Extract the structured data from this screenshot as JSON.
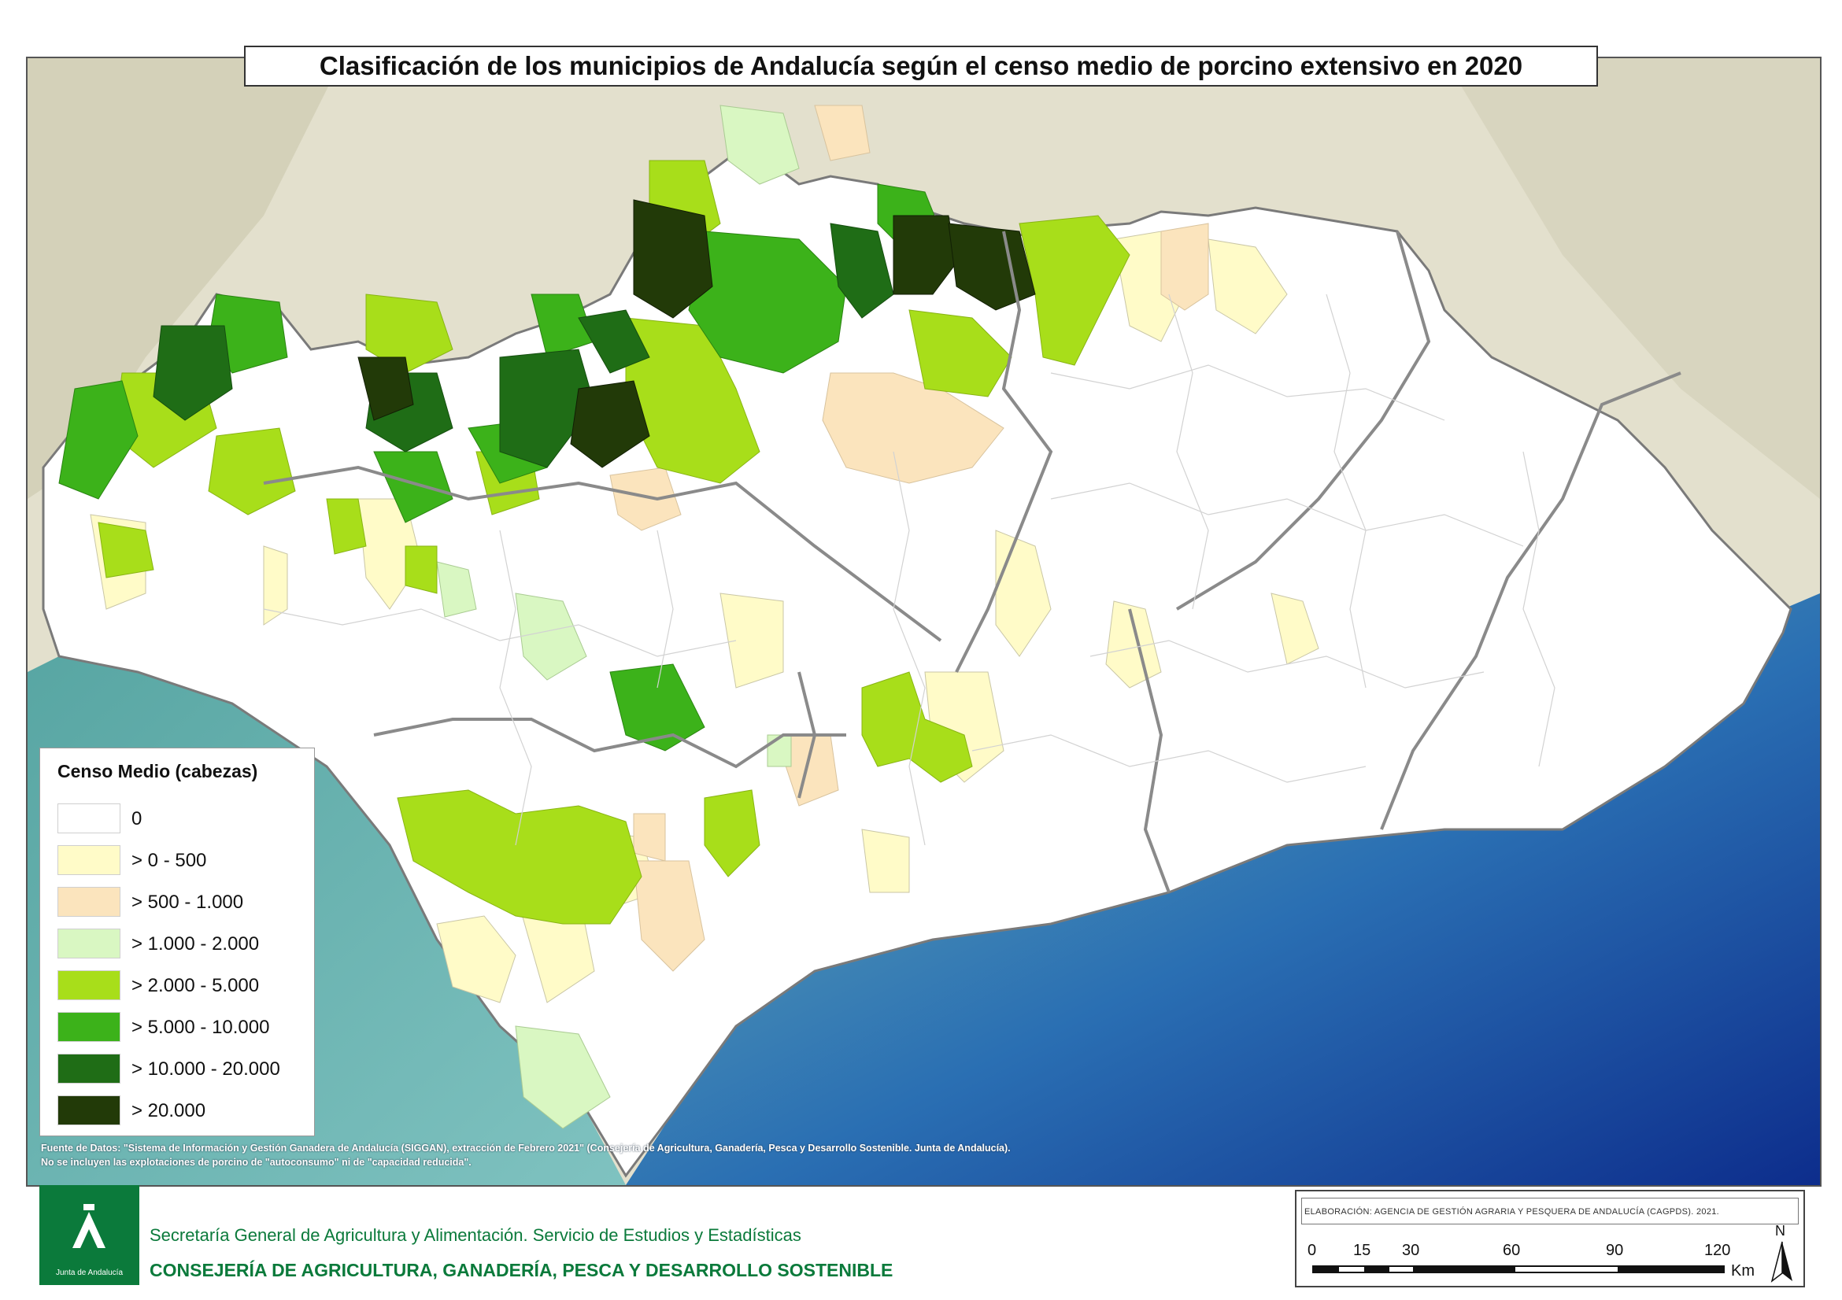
{
  "title": "Clasificación de los municipios de Andalucía según el censo medio de porcino extensivo en 2020",
  "legend": {
    "title": "Censo Medio (cabezas)",
    "items": [
      {
        "label": "0",
        "color": "#ffffff"
      },
      {
        "label": "> 0 - 500",
        "color": "#fffbc8"
      },
      {
        "label": "> 500 - 1.000",
        "color": "#fbe4bd"
      },
      {
        "label": "> 1.000 - 2.000",
        "color": "#d9f7c2"
      },
      {
        "label": "> 2.000 - 5.000",
        "color": "#a8de1a"
      },
      {
        "label": "> 5.000 - 10.000",
        "color": "#3cb21a"
      },
      {
        "label": "> 10.000 - 20.000",
        "color": "#1f6d16"
      },
      {
        "label": "> 20.000",
        "color": "#223a08"
      }
    ]
  },
  "source_note": {
    "line1": "Fuente de Datos: \"Sistema de Información y Gestión Ganadera de Andalucía (SIGGAN), extracción de Febrero 2021\" (Consejería de Agricultura, Ganadería, Pesca y Desarrollo Sostenible. Junta de Andalucía).",
    "line2": "No se incluyen las explotaciones de porcino de \"autoconsumo\" ni de \"capacidad reducida\"."
  },
  "logo": {
    "icon": "junta-de-andalucia-logo",
    "caption": "Junta de Andalucía"
  },
  "ministry": {
    "line1": "Secretaría General de Agricultura y Alimentación. Servicio de Estudios y Estadísticas",
    "line2": "CONSEJERÍA DE AGRICULTURA, GANADERÍA, PESCA Y DESARROLLO SOSTENIBLE"
  },
  "credit": "ELABORACIÓN: AGENCIA DE GESTIÓN AGRARIA Y PESQUERA DE ANDALUCÍA (CAGPDS). 2021.",
  "scale": {
    "ticks": [
      "0",
      "15",
      "30",
      "60",
      "90",
      "120"
    ],
    "unit": "Km",
    "north": "N"
  }
}
